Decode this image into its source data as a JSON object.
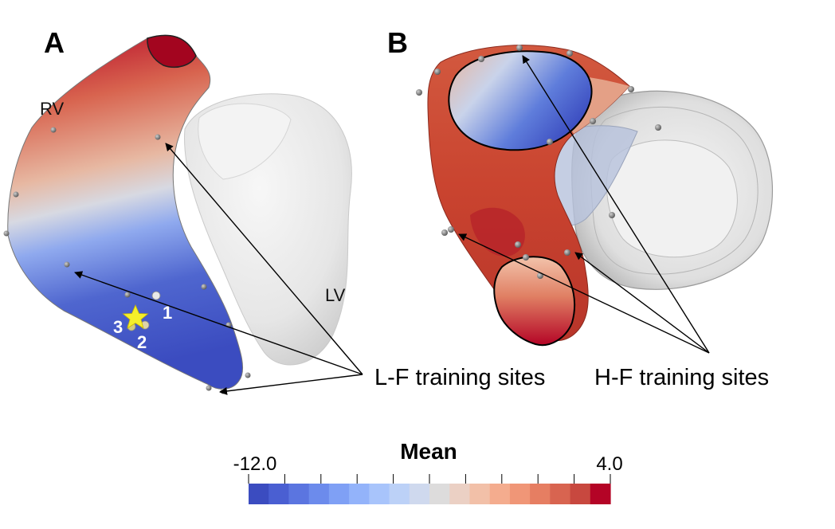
{
  "panels": {
    "a": {
      "letter": "A",
      "rv_label": "RV",
      "lv_label": "LV",
      "site_numbers": [
        "1",
        "2",
        "3"
      ]
    },
    "b": {
      "letter": "B"
    }
  },
  "callouts": {
    "low_fidelity": "L-F training sites",
    "high_fidelity": "H-F training sites"
  },
  "colorbar": {
    "title": "Mean",
    "min_label": "-12.0",
    "max_label": "4.0",
    "min": -12.0,
    "max": 4.0,
    "colors": [
      "#3b4cc0",
      "#4a5fd2",
      "#5b75e0",
      "#6c8bec",
      "#7fa0f5",
      "#93b3fa",
      "#a8c4fb",
      "#bcd1f7",
      "#cfd9ee",
      "#dddcdc",
      "#ebd0c4",
      "#f2c0a8",
      "#f4ac8e",
      "#f09677",
      "#e67e62",
      "#d86450",
      "#c8483f",
      "#b40426"
    ]
  },
  "colors": {
    "red_end": "#b40426",
    "blue_end": "#3b4cc0",
    "marker_star": "#f5ef2a",
    "lv_surface": "#e4e4e4"
  }
}
